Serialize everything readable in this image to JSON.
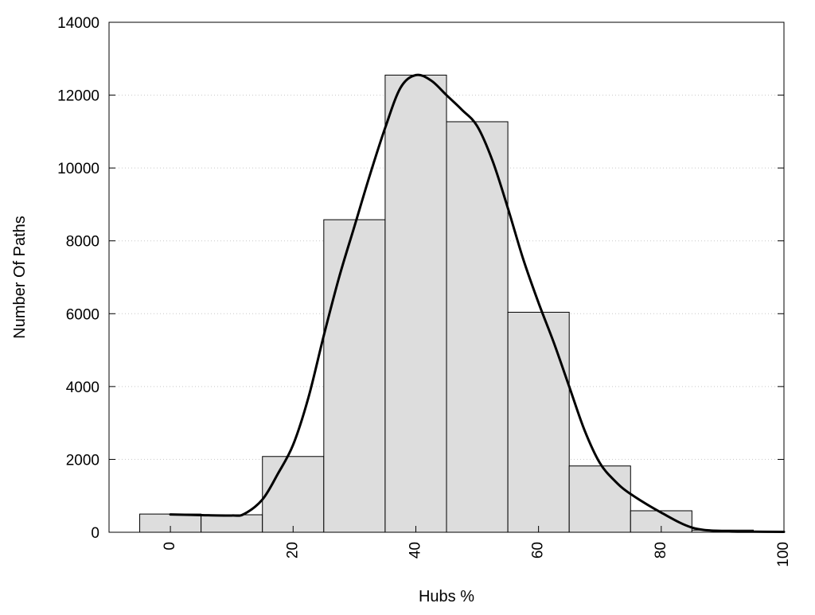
{
  "chart_data": {
    "type": "bar",
    "title": "",
    "xlabel": "Hubs %",
    "ylabel": "Number Of Paths",
    "x_range": [
      -10,
      100
    ],
    "ylim": [
      0,
      14000
    ],
    "grid": "horizontal dotted",
    "x_ticks": [
      0,
      20,
      40,
      60,
      80,
      100
    ],
    "y_ticks": [
      0,
      2000,
      4000,
      6000,
      8000,
      10000,
      12000,
      14000
    ],
    "bar_width": 10,
    "bins": [
      0,
      10,
      20,
      30,
      40,
      50,
      60,
      70,
      80,
      90
    ],
    "values": [
      500,
      480,
      2080,
      8580,
      12550,
      11270,
      6040,
      1820,
      590,
      60
    ],
    "series": [
      {
        "type": "line",
        "x": [
          0,
          5,
          10,
          12,
          15,
          17.5,
          20,
          22.5,
          25,
          27.5,
          30,
          32.5,
          35,
          37.5,
          40,
          42.5,
          45,
          47.5,
          50,
          52.5,
          55,
          57.5,
          60,
          62.5,
          65,
          67.5,
          70,
          72.5,
          75,
          80,
          85,
          90,
          95,
          100
        ],
        "y": [
          490,
          470,
          460,
          500,
          900,
          1600,
          2400,
          3700,
          5400,
          7000,
          8400,
          9800,
          11100,
          12200,
          12550,
          12400,
          12000,
          11600,
          11150,
          10200,
          8900,
          7500,
          6300,
          5200,
          4000,
          2800,
          1900,
          1400,
          1050,
          540,
          130,
          30,
          15,
          10
        ]
      }
    ]
  }
}
